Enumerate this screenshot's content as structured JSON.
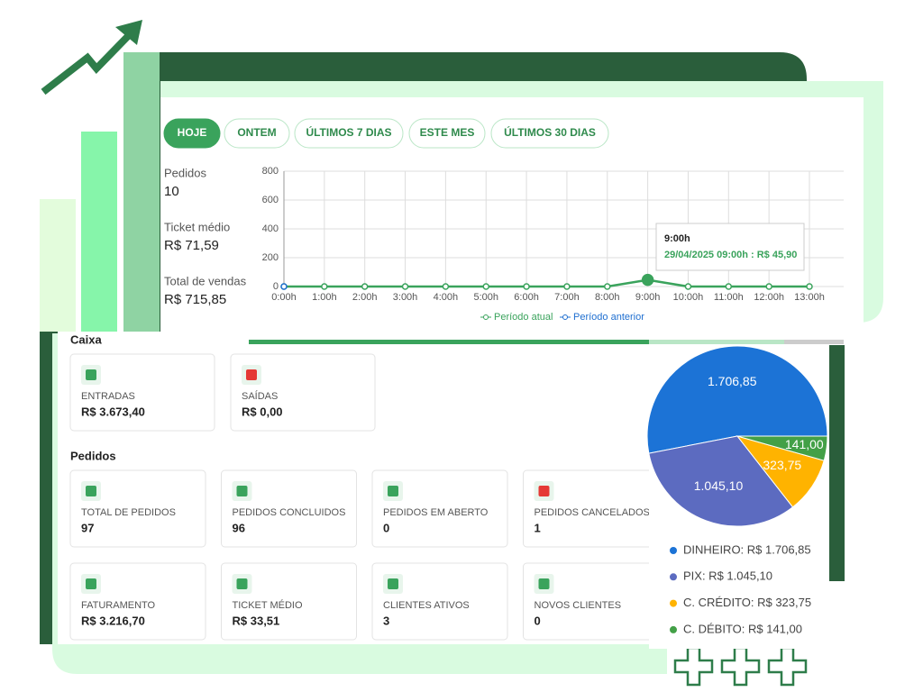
{
  "filters": [
    "HOJE",
    "ONTEM",
    "ÚLTIMOS 7 DIAS",
    "ESTE MES",
    "ÚLTIMOS 30 DIAS"
  ],
  "summary": [
    {
      "label": "Pedidos",
      "value": "10"
    },
    {
      "label": "Ticket médio",
      "value": "R$ 71,59"
    },
    {
      "label": "Total de vendas",
      "value": "R$ 715,85"
    }
  ],
  "chart_data": [
    {
      "type": "line",
      "categories": [
        "0:00h",
        "1:00h",
        "2:00h",
        "3:00h",
        "4:00h",
        "5:00h",
        "6:00h",
        "7:00h",
        "8:00h",
        "9:00h",
        "10:00h",
        "11:00h",
        "12:00h",
        "13:00h"
      ],
      "series": [
        {
          "name": "Período atual",
          "color": "#3aa35c",
          "values": [
            0,
            0,
            0,
            0,
            0,
            0,
            0,
            0,
            0,
            45.9,
            0,
            0,
            0,
            0
          ]
        },
        {
          "name": "Período anterior",
          "color": "#1f6fd0",
          "values": [
            0,
            null,
            null,
            null,
            null,
            null,
            null,
            null,
            null,
            null,
            null,
            null,
            null,
            null
          ]
        }
      ],
      "ylim": [
        0,
        800
      ],
      "yticks": [
        0,
        200,
        400,
        600,
        800
      ],
      "grid": true,
      "tooltip": {
        "title": "9:00h",
        "text": "29/04/2025 09:00h : R$ 45,90"
      }
    },
    {
      "type": "pie",
      "categories": [
        "DINHEIRO",
        "PIX",
        "C. CRÉDITO",
        "C. DÉBITO"
      ],
      "values": [
        1706.85,
        1045.1,
        323.75,
        141.0
      ],
      "value_labels": [
        "1.706,85",
        "1.045,10",
        "323,75",
        "141,00"
      ],
      "colors": [
        "#1c73d6",
        "#5c6bc0",
        "#ffb300",
        "#43a047"
      ],
      "legend_labels": [
        "DINHEIRO: R$ 1.706,85",
        "PIX: R$ 1.045,10",
        "C. CRÉDITO: R$ 323,75",
        "C. DÉBITO: R$ 141,00"
      ]
    }
  ],
  "caixa": {
    "title": "Caixa",
    "cards": [
      {
        "label": "ENTRADAS",
        "value": "R$ 3.673,40"
      },
      {
        "label": "SAÍDAS",
        "value": "R$ 0,00"
      }
    ]
  },
  "pedidos": {
    "title": "Pedidos",
    "cards": [
      {
        "label": "TOTAL DE PEDIDOS",
        "value": "97"
      },
      {
        "label": "PEDIDOS CONCLUIDOS",
        "value": "96"
      },
      {
        "label": "PEDIDOS EM ABERTO",
        "value": "0"
      },
      {
        "label": "PEDIDOS CANCELADOS",
        "value": "1"
      },
      {
        "label": "FATURAMENTO",
        "value": "R$ 3.216,70"
      },
      {
        "label": "TICKET MÉDIO",
        "value": "R$ 33,51"
      },
      {
        "label": "CLIENTES ATIVOS",
        "value": "3"
      },
      {
        "label": "NOVOS CLIENTES",
        "value": "0"
      }
    ]
  }
}
